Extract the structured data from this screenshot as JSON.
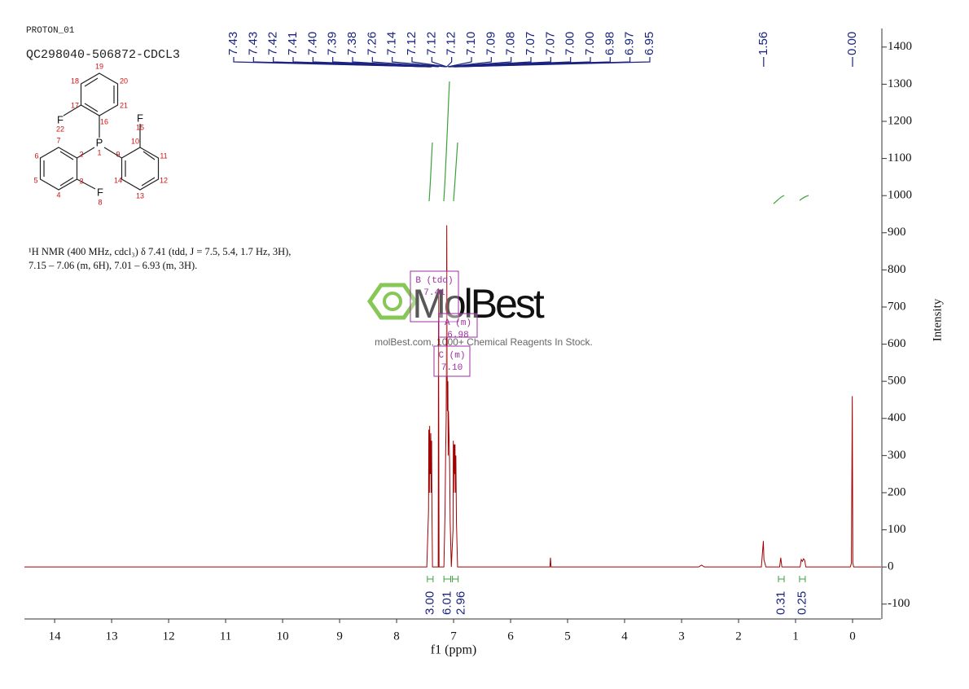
{
  "chart_data": {
    "type": "line",
    "header": [
      "PROTON_01",
      "QC298040-506872-CDCL3"
    ],
    "description": [
      "¹H NMR (400 MHz, cdcl₃) δ 7.41 (tdd, J = 7.5, 5.4, 1.7 Hz, 3H),",
      "7.15 – 7.06 (m, 6H), 7.01 – 6.93 (m, 3H)."
    ],
    "molecule": {
      "labels": [
        "19",
        "18",
        "20",
        "17",
        "21",
        "16",
        "F",
        "22",
        "F",
        "15",
        "P",
        "1",
        "10",
        "7",
        "2",
        "9",
        "11",
        "6",
        "5",
        "14",
        "12",
        "3",
        "F",
        "8",
        "4",
        "13"
      ]
    },
    "watermark": {
      "title": "MolBest",
      "subtitle": "molBest.com, 1000+ Chemical Reagents In Stock."
    },
    "multiplets": [
      {
        "name": "B (tdd)",
        "shift": 7.41
      },
      {
        "name": "A (m)",
        "shift": 6.98
      },
      {
        "name": "C (m)",
        "shift": {
          "value": 7.1,
          "label": "7.10"
        }
      }
    ],
    "x_label": "f1 (ppm)",
    "y_label": "Intensity",
    "color": "#a00000",
    "x": [
      14.53,
      7.47,
      7.44,
      7.435,
      7.425,
      7.42,
      7.41,
      7.4,
      7.395,
      7.385,
      7.38,
      7.37,
      7.27,
      7.265,
      7.255,
      7.17,
      7.15,
      7.14,
      7.13,
      7.125,
      7.12,
      7.115,
      7.11,
      7.1,
      7.095,
      7.09,
      7.08,
      7.07,
      7.06,
      7.04,
      7.01,
      7.005,
      7.0,
      6.99,
      6.98,
      6.975,
      6.97,
      6.96,
      6.95,
      6.93,
      5.31,
      5.3,
      5.29,
      2.7,
      2.65,
      2.6,
      1.6,
      1.565,
      1.555,
      1.52,
      1.28,
      1.26,
      1.24,
      0.92,
      0.9,
      0.88,
      0.86,
      0.84,
      0.82,
      0.04,
      0.02,
      0.005,
      -0.005,
      -0.02,
      -0.5
    ],
    "values": [
      0,
      0,
      150,
      370,
      200,
      380,
      250,
      360,
      200,
      340,
      150,
      0,
      0,
      750,
      0,
      0,
      150,
      300,
      400,
      600,
      920,
      650,
      420,
      500,
      300,
      420,
      350,
      280,
      120,
      0,
      100,
      340,
      200,
      330,
      250,
      330,
      200,
      300,
      120,
      0,
      0,
      25,
      0,
      0,
      5,
      0,
      0,
      70,
      20,
      0,
      0,
      25,
      0,
      0,
      20,
      15,
      22,
      18,
      0,
      0,
      10,
      460,
      10,
      0,
      0
    ],
    "xlim": [
      14.53,
      -0.5
    ],
    "xticks": [
      14,
      13,
      12,
      11,
      10,
      9,
      8,
      7,
      6,
      5,
      4,
      3,
      2,
      1,
      0
    ],
    "ylim": [
      -140,
      1450
    ],
    "yticks": [
      -100,
      0,
      100,
      200,
      300,
      400,
      500,
      600,
      700,
      800,
      900,
      1000,
      1100,
      1200,
      1300,
      1400
    ],
    "peak_labels": [
      7.43,
      7.43,
      7.42,
      7.41,
      {
        "value": 7.4,
        "label": "7.40"
      },
      7.39,
      7.38,
      7.26,
      7.14,
      7.12,
      7.12,
      7.12,
      {
        "value": 7.1,
        "label": "7.10"
      },
      7.09,
      7.08,
      7.07,
      7.07,
      {
        "value": 7,
        "label": "7.00"
      },
      {
        "value": 7,
        "label": "7.00"
      },
      6.98,
      6.97,
      6.95,
      1.56,
      {
        "value": 0,
        "label": "0.00"
      }
    ],
    "integrals": [
      {
        "from": 7.46,
        "to": 7.36,
        "value": 3,
        "label": "3.00"
      },
      {
        "from": 7.17,
        "to": 7.05,
        "value": 6.01
      },
      {
        "from": 7.02,
        "to": 6.92,
        "value": 2.96
      },
      {
        "from": 1.3,
        "to": 1.2,
        "value": 0.31
      },
      {
        "from": 0.93,
        "to": 0.83,
        "value": 0.25
      }
    ]
  }
}
